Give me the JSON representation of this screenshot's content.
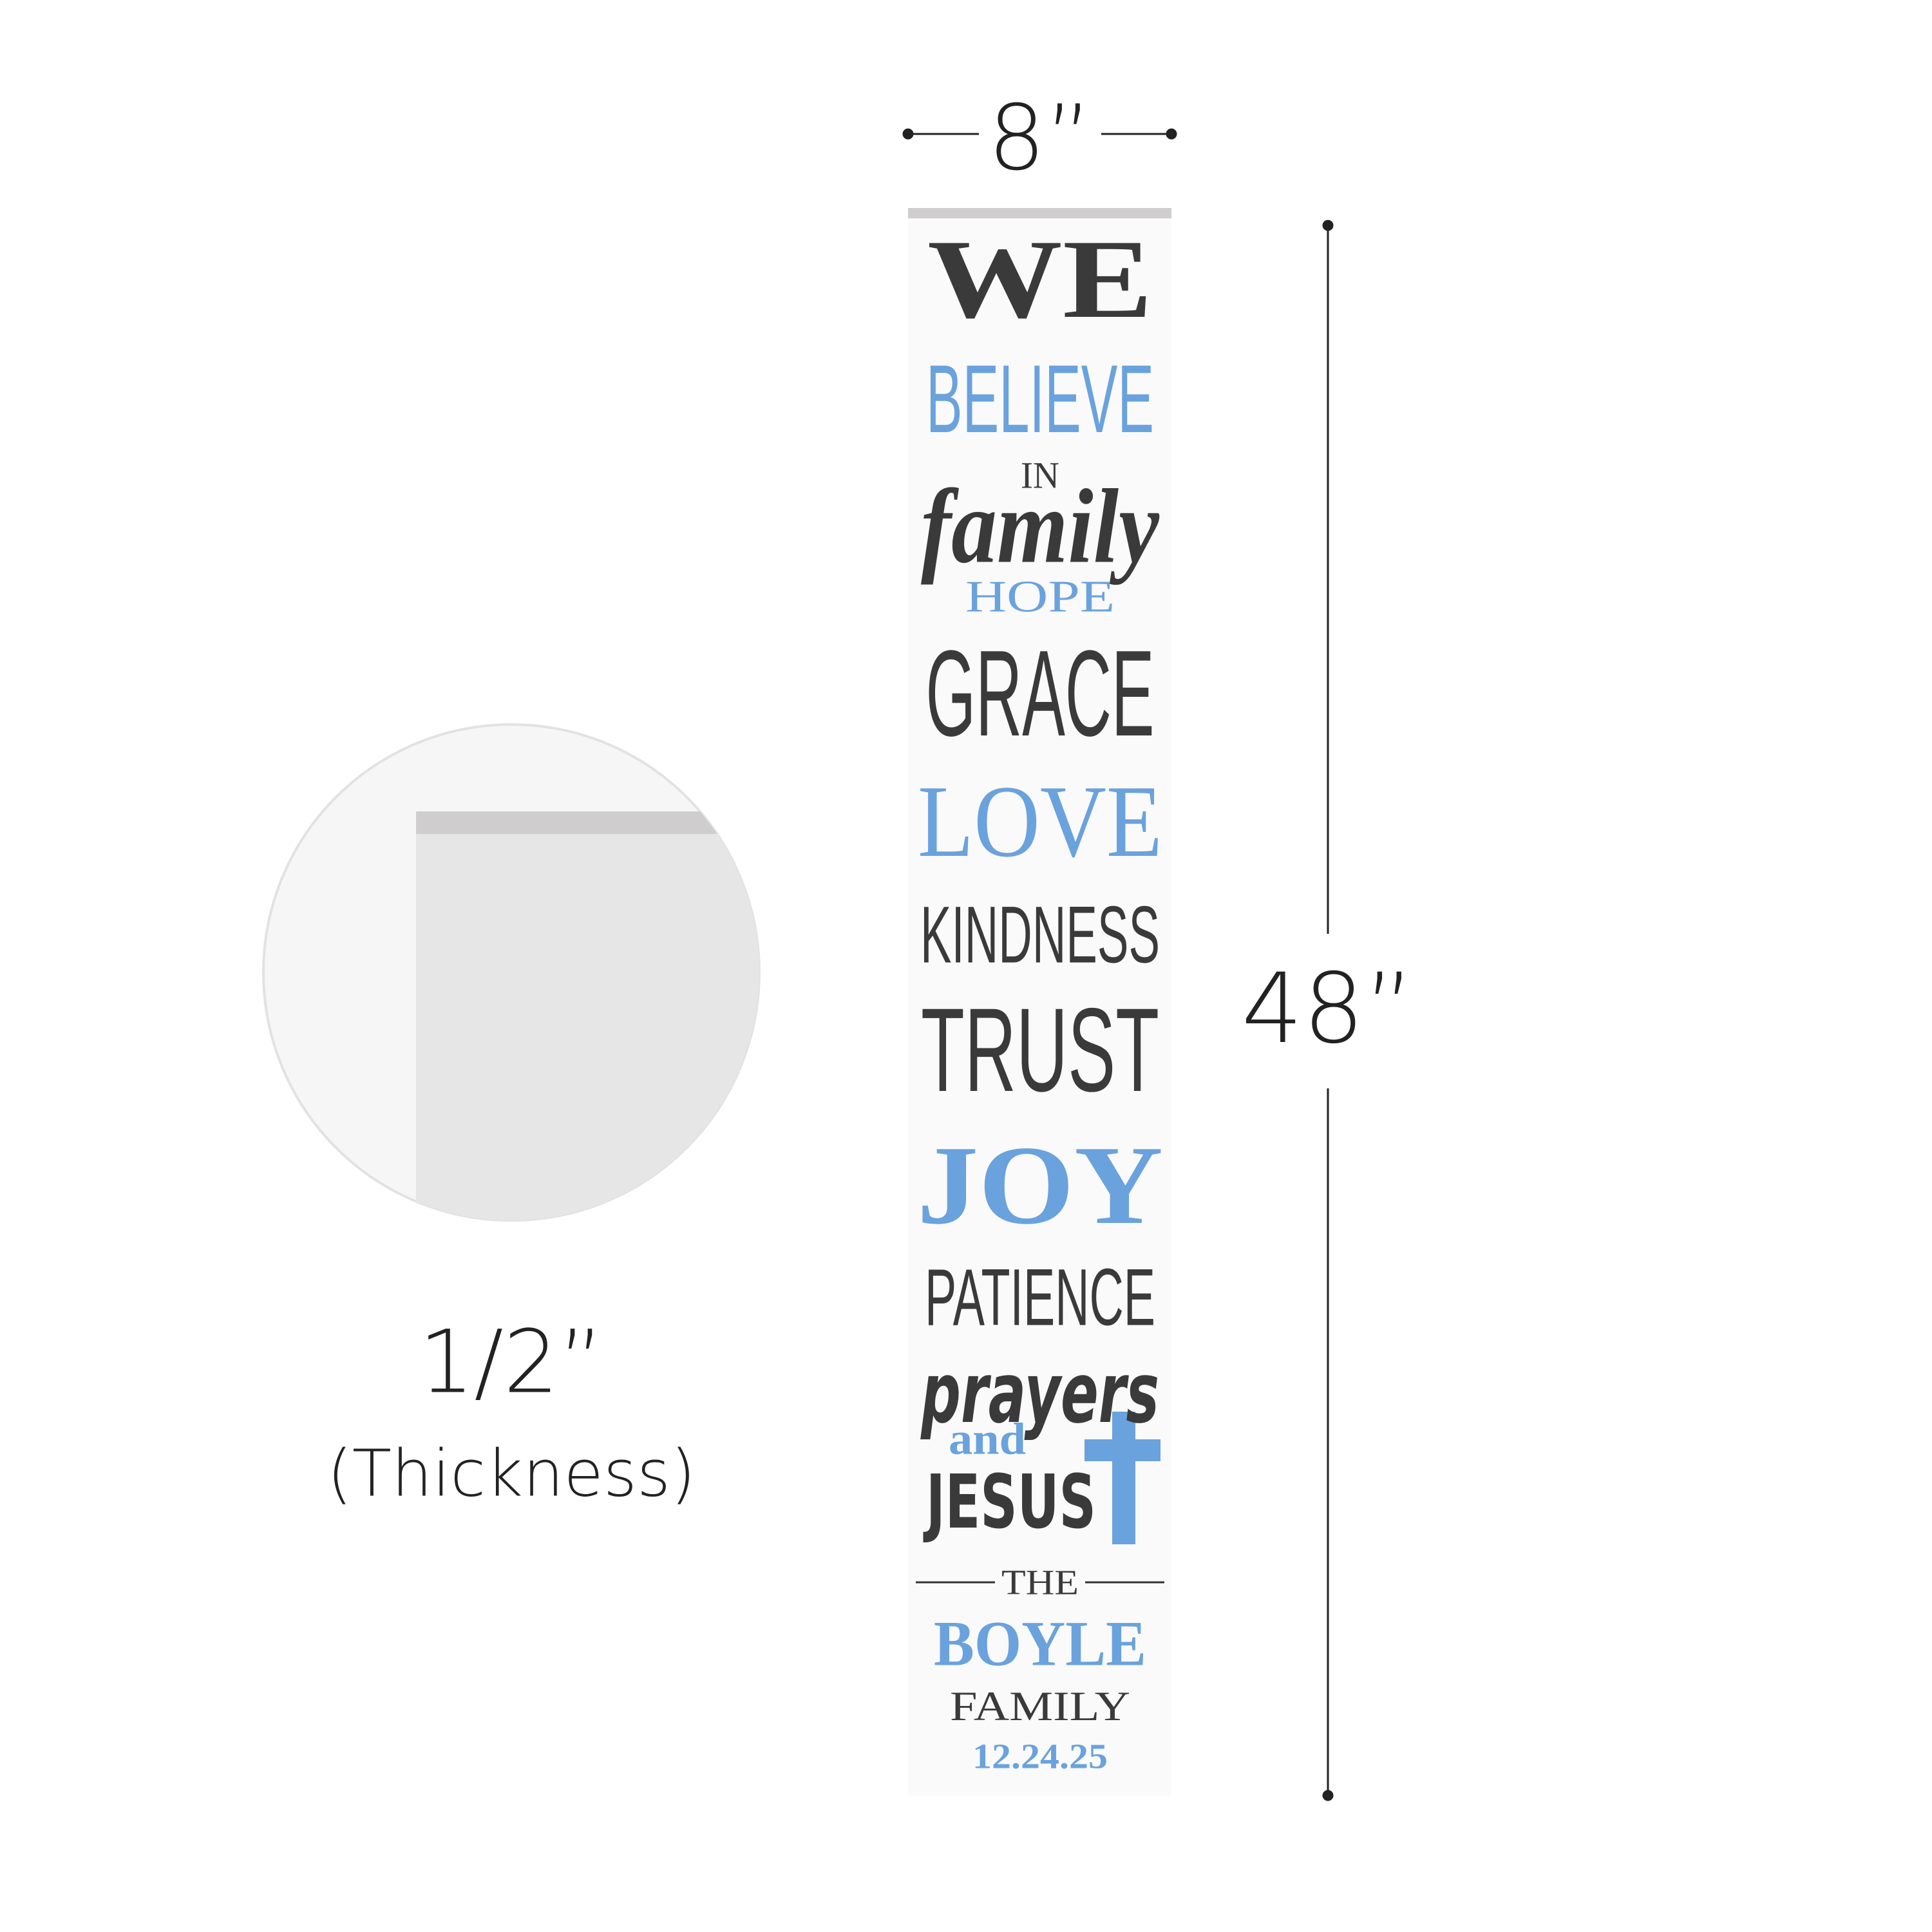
{
  "dimensions": {
    "width": "8”",
    "height": "48”",
    "thickness": "1/2”",
    "thickness_caption": "(Thickness)"
  },
  "sign": {
    "lines": [
      "WE",
      "BELIEVE",
      "IN",
      "family",
      "HOPE",
      "GRACE",
      "LOVE",
      "KINDNESS",
      "TRUST",
      "JOY",
      "PATIENCE",
      "prayers",
      "and",
      "JESUS",
      "THE",
      "BOYLE",
      "FAMILY",
      "12.24.25"
    ]
  }
}
